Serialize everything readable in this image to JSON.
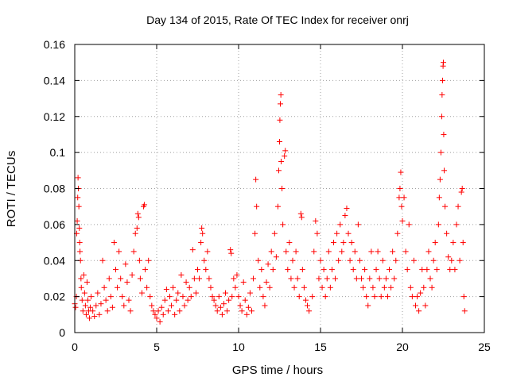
{
  "chart_data": {
    "type": "scatter",
    "title": "Day 134 of 2015, Rate Of TEC Index for receiver onrj",
    "xlabel": "GPS time / hours",
    "ylabel": "ROTI / TECUs",
    "xlim": [
      0,
      25
    ],
    "ylim": [
      0,
      0.16
    ],
    "x_ticks": [
      0,
      5,
      10,
      15,
      20,
      25
    ],
    "x_tick_labels": [
      "0",
      "5",
      "10",
      "15",
      "20",
      "25"
    ],
    "y_ticks": [
      0,
      0.02,
      0.04,
      0.06,
      0.08,
      0.1,
      0.12,
      0.14,
      0.16
    ],
    "y_tick_labels": [
      "0",
      "0.02",
      "0.04",
      "0.06",
      "0.08",
      "0.1",
      "0.12",
      "0.14",
      "0.16"
    ],
    "grid": true,
    "marker": "plus",
    "color": "#ff0000",
    "series": [
      {
        "name": "ROTI",
        "points": [
          [
            0.0,
            0.016
          ],
          [
            0.05,
            0.014
          ],
          [
            0.1,
            0.02
          ],
          [
            0.12,
            0.055
          ],
          [
            0.15,
            0.062
          ],
          [
            0.18,
            0.075
          ],
          [
            0.2,
            0.086
          ],
          [
            0.22,
            0.08
          ],
          [
            0.25,
            0.07
          ],
          [
            0.28,
            0.058
          ],
          [
            0.3,
            0.05
          ],
          [
            0.32,
            0.045
          ],
          [
            0.35,
            0.04
          ],
          [
            0.38,
            0.03
          ],
          [
            0.4,
            0.025
          ],
          [
            0.45,
            0.018
          ],
          [
            0.5,
            0.012
          ],
          [
            0.55,
            0.032
          ],
          [
            0.6,
            0.022
          ],
          [
            0.65,
            0.015
          ],
          [
            0.7,
            0.01
          ],
          [
            0.75,
            0.028
          ],
          [
            0.8,
            0.018
          ],
          [
            0.85,
            0.012
          ],
          [
            0.9,
            0.008
          ],
          [
            0.95,
            0.014
          ],
          [
            1.0,
            0.02
          ],
          [
            1.1,
            0.012
          ],
          [
            1.2,
            0.009
          ],
          [
            1.3,
            0.015
          ],
          [
            1.4,
            0.022
          ],
          [
            1.5,
            0.01
          ],
          [
            1.6,
            0.016
          ],
          [
            1.7,
            0.04
          ],
          [
            1.8,
            0.025
          ],
          [
            1.9,
            0.018
          ],
          [
            2.0,
            0.012
          ],
          [
            2.1,
            0.03
          ],
          [
            2.2,
            0.02
          ],
          [
            2.3,
            0.014
          ],
          [
            2.4,
            0.05
          ],
          [
            2.5,
            0.035
          ],
          [
            2.6,
            0.025
          ],
          [
            2.7,
            0.045
          ],
          [
            2.8,
            0.03
          ],
          [
            2.9,
            0.02
          ],
          [
            3.0,
            0.015
          ],
          [
            3.1,
            0.038
          ],
          [
            3.2,
            0.028
          ],
          [
            3.3,
            0.018
          ],
          [
            3.4,
            0.012
          ],
          [
            3.5,
            0.032
          ],
          [
            3.6,
            0.045
          ],
          [
            3.7,
            0.055
          ],
          [
            3.8,
            0.058
          ],
          [
            3.85,
            0.066
          ],
          [
            3.9,
            0.064
          ],
          [
            3.95,
            0.04
          ],
          [
            4.0,
            0.03
          ],
          [
            4.1,
            0.022
          ],
          [
            4.2,
            0.07
          ],
          [
            4.25,
            0.071
          ],
          [
            4.3,
            0.035
          ],
          [
            4.4,
            0.025
          ],
          [
            4.5,
            0.04
          ],
          [
            4.6,
            0.02
          ],
          [
            4.7,
            0.015
          ],
          [
            4.8,
            0.012
          ],
          [
            4.9,
            0.01
          ],
          [
            5.0,
            0.008
          ],
          [
            5.1,
            0.012
          ],
          [
            5.2,
            0.006
          ],
          [
            5.3,
            0.014
          ],
          [
            5.4,
            0.01
          ],
          [
            5.5,
            0.018
          ],
          [
            5.6,
            0.024
          ],
          [
            5.7,
            0.012
          ],
          [
            5.8,
            0.02
          ],
          [
            5.9,
            0.015
          ],
          [
            6.0,
            0.025
          ],
          [
            6.1,
            0.01
          ],
          [
            6.2,
            0.018
          ],
          [
            6.3,
            0.022
          ],
          [
            6.4,
            0.012
          ],
          [
            6.5,
            0.032
          ],
          [
            6.6,
            0.02
          ],
          [
            6.7,
            0.015
          ],
          [
            6.8,
            0.028
          ],
          [
            6.9,
            0.018
          ],
          [
            7.0,
            0.025
          ],
          [
            7.1,
            0.02
          ],
          [
            7.2,
            0.046
          ],
          [
            7.3,
            0.03
          ],
          [
            7.4,
            0.022
          ],
          [
            7.5,
            0.035
          ],
          [
            7.6,
            0.03
          ],
          [
            7.7,
            0.05
          ],
          [
            7.75,
            0.058
          ],
          [
            7.8,
            0.055
          ],
          [
            7.9,
            0.04
          ],
          [
            8.0,
            0.035
          ],
          [
            8.1,
            0.045
          ],
          [
            8.2,
            0.03
          ],
          [
            8.3,
            0.025
          ],
          [
            8.4,
            0.02
          ],
          [
            8.5,
            0.018
          ],
          [
            8.6,
            0.015
          ],
          [
            8.7,
            0.012
          ],
          [
            8.8,
            0.02
          ],
          [
            8.9,
            0.014
          ],
          [
            9.0,
            0.01
          ],
          [
            9.1,
            0.016
          ],
          [
            9.2,
            0.022
          ],
          [
            9.3,
            0.012
          ],
          [
            9.4,
            0.018
          ],
          [
            9.5,
            0.046
          ],
          [
            9.55,
            0.044
          ],
          [
            9.6,
            0.02
          ],
          [
            9.7,
            0.03
          ],
          [
            9.8,
            0.025
          ],
          [
            9.9,
            0.032
          ],
          [
            10.0,
            0.02
          ],
          [
            10.1,
            0.015
          ],
          [
            10.2,
            0.012
          ],
          [
            10.3,
            0.028
          ],
          [
            10.4,
            0.018
          ],
          [
            10.5,
            0.01
          ],
          [
            10.6,
            0.014
          ],
          [
            10.7,
            0.022
          ],
          [
            10.8,
            0.012
          ],
          [
            10.9,
            0.03
          ],
          [
            11.0,
            0.055
          ],
          [
            11.05,
            0.085
          ],
          [
            11.1,
            0.07
          ],
          [
            11.2,
            0.04
          ],
          [
            11.3,
            0.025
          ],
          [
            11.4,
            0.035
          ],
          [
            11.5,
            0.02
          ],
          [
            11.6,
            0.015
          ],
          [
            11.7,
            0.028
          ],
          [
            11.8,
            0.038
          ],
          [
            11.9,
            0.025
          ],
          [
            12.0,
            0.045
          ],
          [
            12.1,
            0.035
          ],
          [
            12.2,
            0.055
          ],
          [
            12.3,
            0.042
          ],
          [
            12.4,
            0.07
          ],
          [
            12.45,
            0.09
          ],
          [
            12.5,
            0.106
          ],
          [
            12.52,
            0.118
          ],
          [
            12.55,
            0.127
          ],
          [
            12.58,
            0.132
          ],
          [
            12.6,
            0.095
          ],
          [
            12.65,
            0.08
          ],
          [
            12.7,
            0.06
          ],
          [
            12.8,
            0.098
          ],
          [
            12.85,
            0.101
          ],
          [
            12.9,
            0.045
          ],
          [
            13.0,
            0.035
          ],
          [
            13.1,
            0.05
          ],
          [
            13.2,
            0.03
          ],
          [
            13.3,
            0.04
          ],
          [
            13.4,
            0.025
          ],
          [
            13.5,
            0.045
          ],
          [
            13.6,
            0.03
          ],
          [
            13.7,
            0.02
          ],
          [
            13.8,
            0.066
          ],
          [
            13.85,
            0.064
          ],
          [
            13.9,
            0.035
          ],
          [
            14.0,
            0.025
          ],
          [
            14.1,
            0.018
          ],
          [
            14.2,
            0.015
          ],
          [
            14.3,
            0.012
          ],
          [
            14.5,
            0.02
          ],
          [
            14.6,
            0.045
          ],
          [
            14.7,
            0.062
          ],
          [
            14.8,
            0.055
          ],
          [
            14.9,
            0.03
          ],
          [
            15.0,
            0.04
          ],
          [
            15.1,
            0.025
          ],
          [
            15.2,
            0.035
          ],
          [
            15.3,
            0.02
          ],
          [
            15.4,
            0.03
          ],
          [
            15.5,
            0.045
          ],
          [
            15.6,
            0.025
          ],
          [
            15.7,
            0.035
          ],
          [
            15.8,
            0.05
          ],
          [
            15.9,
            0.03
          ],
          [
            16.0,
            0.055
          ],
          [
            16.1,
            0.04
          ],
          [
            16.2,
            0.06
          ],
          [
            16.3,
            0.045
          ],
          [
            16.4,
            0.05
          ],
          [
            16.5,
            0.065
          ],
          [
            16.6,
            0.069
          ],
          [
            16.7,
            0.055
          ],
          [
            16.8,
            0.04
          ],
          [
            16.9,
            0.05
          ],
          [
            17.0,
            0.035
          ],
          [
            17.1,
            0.045
          ],
          [
            17.2,
            0.03
          ],
          [
            17.3,
            0.06
          ],
          [
            17.4,
            0.04
          ],
          [
            17.5,
            0.03
          ],
          [
            17.6,
            0.025
          ],
          [
            17.7,
            0.035
          ],
          [
            17.8,
            0.02
          ],
          [
            17.9,
            0.015
          ],
          [
            18.0,
            0.03
          ],
          [
            18.1,
            0.045
          ],
          [
            18.2,
            0.025
          ],
          [
            18.3,
            0.02
          ],
          [
            18.4,
            0.035
          ],
          [
            18.5,
            0.045
          ],
          [
            18.6,
            0.03
          ],
          [
            18.7,
            0.02
          ],
          [
            18.8,
            0.04
          ],
          [
            18.9,
            0.025
          ],
          [
            19.0,
            0.03
          ],
          [
            19.1,
            0.02
          ],
          [
            19.2,
            0.035
          ],
          [
            19.3,
            0.025
          ],
          [
            19.4,
            0.045
          ],
          [
            19.5,
            0.03
          ],
          [
            19.6,
            0.04
          ],
          [
            19.7,
            0.055
          ],
          [
            19.8,
            0.075
          ],
          [
            19.85,
            0.08
          ],
          [
            19.9,
            0.089
          ],
          [
            19.95,
            0.07
          ],
          [
            20.0,
            0.062
          ],
          [
            20.1,
            0.075
          ],
          [
            20.2,
            0.045
          ],
          [
            20.3,
            0.035
          ],
          [
            20.4,
            0.06
          ],
          [
            20.5,
            0.025
          ],
          [
            20.6,
            0.02
          ],
          [
            20.7,
            0.04
          ],
          [
            20.8,
            0.015
          ],
          [
            20.9,
            0.02
          ],
          [
            21.0,
            0.012
          ],
          [
            21.1,
            0.022
          ],
          [
            21.2,
            0.035
          ],
          [
            21.3,
            0.025
          ],
          [
            21.4,
            0.015
          ],
          [
            21.5,
            0.035
          ],
          [
            21.6,
            0.045
          ],
          [
            21.7,
            0.03
          ],
          [
            21.8,
            0.025
          ],
          [
            21.9,
            0.04
          ],
          [
            22.0,
            0.05
          ],
          [
            22.1,
            0.035
          ],
          [
            22.2,
            0.06
          ],
          [
            22.25,
            0.075
          ],
          [
            22.3,
            0.085
          ],
          [
            22.35,
            0.1
          ],
          [
            22.4,
            0.12
          ],
          [
            22.42,
            0.132
          ],
          [
            22.45,
            0.14
          ],
          [
            22.48,
            0.148
          ],
          [
            22.5,
            0.15
          ],
          [
            22.52,
            0.11
          ],
          [
            22.55,
            0.09
          ],
          [
            22.6,
            0.07
          ],
          [
            22.7,
            0.055
          ],
          [
            22.8,
            0.042
          ],
          [
            22.9,
            0.035
          ],
          [
            23.0,
            0.04
          ],
          [
            23.1,
            0.05
          ],
          [
            23.2,
            0.035
          ],
          [
            23.3,
            0.06
          ],
          [
            23.4,
            0.07
          ],
          [
            23.5,
            0.04
          ],
          [
            23.6,
            0.078
          ],
          [
            23.65,
            0.08
          ],
          [
            23.7,
            0.05
          ],
          [
            23.75,
            0.02
          ],
          [
            23.8,
            0.012
          ]
        ]
      }
    ]
  }
}
